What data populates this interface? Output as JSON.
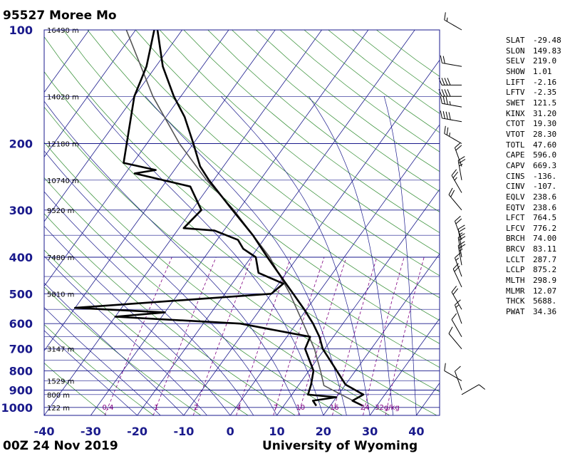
{
  "header": {
    "station": "95527  Moree Mo",
    "time": "00Z 24 Nov 2019",
    "source": "University of Wyoming"
  },
  "colors": {
    "isobar": "#1a1a8c",
    "isotherm": "#1a1a8c",
    "dry_adiabat": "#2e8b2e",
    "moist_adiabat": "#1a1a8c",
    "mixing_ratio": "#800080",
    "sounding": "#000000",
    "parcel": "#555555"
  },
  "chart_data": {
    "type": "skew-t",
    "pressure_levels": [
      100,
      200,
      300,
      400,
      500,
      600,
      700,
      800,
      900,
      1000
    ],
    "temperature_ticks": [
      -40,
      -30,
      -20,
      -10,
      0,
      10,
      20,
      30,
      40
    ],
    "xlim": [
      -40,
      45
    ],
    "ylim": [
      1050,
      100
    ],
    "height_labels": [
      {
        "p": 100,
        "text": "16490 m"
      },
      {
        "p": 150,
        "text": "14020 m"
      },
      {
        "p": 200,
        "text": "12180 m"
      },
      {
        "p": 250,
        "text": "10740 m"
      },
      {
        "p": 300,
        "text": "9520 m"
      },
      {
        "p": 400,
        "text": "7480 m"
      },
      {
        "p": 500,
        "text": "5810 m"
      },
      {
        "p": 700,
        "text": "3147 m"
      },
      {
        "p": 850,
        "text": "1529 m"
      },
      {
        "p": 925,
        "text": "800 m"
      },
      {
        "p": 1000,
        "text": "122 m"
      }
    ],
    "mixing_ratio_labels": [
      "0.4",
      "1",
      "2",
      "4",
      "7",
      "10",
      "16",
      "24",
      "32g/kg"
    ],
    "temperature_profile": [
      {
        "p": 990,
        "t": 27.0
      },
      {
        "p": 960,
        "t": 24.0
      },
      {
        "p": 925,
        "t": 25.4
      },
      {
        "p": 870,
        "t": 20.0
      },
      {
        "p": 800,
        "t": 16.0
      },
      {
        "p": 700,
        "t": 9.6
      },
      {
        "p": 650,
        "t": 7.0
      },
      {
        "p": 600,
        "t": 3.6
      },
      {
        "p": 550,
        "t": -0.5
      },
      {
        "p": 500,
        "t": -5.3
      },
      {
        "p": 450,
        "t": -10.6
      },
      {
        "p": 400,
        "t": -16.5
      },
      {
        "p": 350,
        "t": -23.0
      },
      {
        "p": 300,
        "t": -31.3
      },
      {
        "p": 250,
        "t": -41.0
      },
      {
        "p": 230,
        "t": -45.0
      },
      {
        "p": 200,
        "t": -50.0
      },
      {
        "p": 170,
        "t": -56.0
      },
      {
        "p": 150,
        "t": -61.5
      },
      {
        "p": 125,
        "t": -68.5
      },
      {
        "p": 100,
        "t": -75.3
      }
    ],
    "dewpoint_profile": [
      {
        "p": 990,
        "t": 17.0
      },
      {
        "p": 960,
        "t": 15.5
      },
      {
        "p": 940,
        "t": 20.0
      },
      {
        "p": 925,
        "t": 13.5
      },
      {
        "p": 870,
        "t": 12.6
      },
      {
        "p": 800,
        "t": 11.0
      },
      {
        "p": 700,
        "t": 5.8
      },
      {
        "p": 650,
        "t": 5.0
      },
      {
        "p": 600,
        "t": -12.0
      },
      {
        "p": 575,
        "t": -40.0
      },
      {
        "p": 560,
        "t": -30.0
      },
      {
        "p": 545,
        "t": -50.0
      },
      {
        "p": 500,
        "t": -10.0
      },
      {
        "p": 470,
        "t": -9.0
      },
      {
        "p": 440,
        "t": -16.0
      },
      {
        "p": 400,
        "t": -19.0
      },
      {
        "p": 380,
        "t": -23.0
      },
      {
        "p": 360,
        "t": -25.5
      },
      {
        "p": 340,
        "t": -32.0
      },
      {
        "p": 335,
        "t": -39.0
      },
      {
        "p": 300,
        "t": -38.0
      },
      {
        "p": 260,
        "t": -44.0
      },
      {
        "p": 240,
        "t": -58.0
      },
      {
        "p": 235,
        "t": -54.0
      },
      {
        "p": 225,
        "t": -62.0
      },
      {
        "p": 150,
        "t": -70.0
      },
      {
        "p": 125,
        "t": -72.0
      },
      {
        "p": 100,
        "t": -76.0
      }
    ],
    "parcel_profile": [
      {
        "p": 990,
        "t": 27.0
      },
      {
        "p": 875,
        "t": 15.5
      },
      {
        "p": 800,
        "t": 12.5
      },
      {
        "p": 700,
        "t": 7.8
      },
      {
        "p": 600,
        "t": 1.5
      },
      {
        "p": 500,
        "t": -6.0
      },
      {
        "p": 400,
        "t": -16.0
      },
      {
        "p": 300,
        "t": -31.0
      },
      {
        "p": 250,
        "t": -41.5
      },
      {
        "p": 200,
        "t": -53.0
      },
      {
        "p": 150,
        "t": -66.0
      },
      {
        "p": 100,
        "t": -82.0
      }
    ],
    "wind_barbs": [
      {
        "p": 100,
        "dir": 300,
        "spd": 15
      },
      {
        "p": 125,
        "dir": 280,
        "spd": 20
      },
      {
        "p": 140,
        "dir": 270,
        "spd": 40
      },
      {
        "p": 150,
        "dir": 270,
        "spd": 40
      },
      {
        "p": 160,
        "dir": 280,
        "spd": 35
      },
      {
        "p": 175,
        "dir": 280,
        "spd": 40
      },
      {
        "p": 200,
        "dir": 300,
        "spd": 25
      },
      {
        "p": 230,
        "dir": 340,
        "spd": 20
      },
      {
        "p": 250,
        "dir": 350,
        "spd": 25
      },
      {
        "p": 270,
        "dir": 330,
        "spd": 25
      },
      {
        "p": 300,
        "dir": 320,
        "spd": 20
      },
      {
        "p": 360,
        "dir": 340,
        "spd": 20
      },
      {
        "p": 380,
        "dir": 350,
        "spd": 25
      },
      {
        "p": 400,
        "dir": 350,
        "spd": 20
      },
      {
        "p": 420,
        "dir": 350,
        "spd": 25
      },
      {
        "p": 450,
        "dir": 340,
        "spd": 15
      },
      {
        "p": 480,
        "dir": 335,
        "spd": 20
      },
      {
        "p": 550,
        "dir": 330,
        "spd": 20
      },
      {
        "p": 600,
        "dir": 340,
        "spd": 15
      },
      {
        "p": 650,
        "dir": 330,
        "spd": 10
      },
      {
        "p": 700,
        "dir": 320,
        "spd": 10
      },
      {
        "p": 850,
        "dir": 300,
        "spd": 10
      },
      {
        "p": 900,
        "dir": 340,
        "spd": 10
      },
      {
        "p": 925,
        "dir": 60,
        "spd": 10
      }
    ]
  },
  "indices": [
    {
      "k": "SLAT",
      "v": "-29.48"
    },
    {
      "k": "SLON",
      "v": "149.83"
    },
    {
      "k": "SELV",
      "v": "219.0"
    },
    {
      "k": "SHOW",
      "v": "1.01"
    },
    {
      "k": "LIFT",
      "v": "-2.16"
    },
    {
      "k": "LFTV",
      "v": "-2.35"
    },
    {
      "k": "SWET",
      "v": "121.5"
    },
    {
      "k": "KINX",
      "v": "31.20"
    },
    {
      "k": "CTOT",
      "v": "19.30"
    },
    {
      "k": "VTOT",
      "v": "28.30"
    },
    {
      "k": "TOTL",
      "v": "47.60"
    },
    {
      "k": "CAPE",
      "v": "596.0"
    },
    {
      "k": "CAPV",
      "v": "669.3"
    },
    {
      "k": "CINS",
      "v": "-136."
    },
    {
      "k": "CINV",
      "v": "-107."
    },
    {
      "k": "EQLV",
      "v": "238.6"
    },
    {
      "k": "EQTV",
      "v": "238.6"
    },
    {
      "k": "LFCT",
      "v": "764.5"
    },
    {
      "k": "LFCV",
      "v": "776.2"
    },
    {
      "k": "BRCH",
      "v": "74.00"
    },
    {
      "k": "BRCV",
      "v": "83.11"
    },
    {
      "k": "LCLT",
      "v": "287.7"
    },
    {
      "k": "LCLP",
      "v": "875.2"
    },
    {
      "k": "MLTH",
      "v": "298.9"
    },
    {
      "k": "MLMR",
      "v": "12.07"
    },
    {
      "k": "THCK",
      "v": "5688."
    },
    {
      "k": "PWAT",
      "v": "34.36"
    }
  ]
}
